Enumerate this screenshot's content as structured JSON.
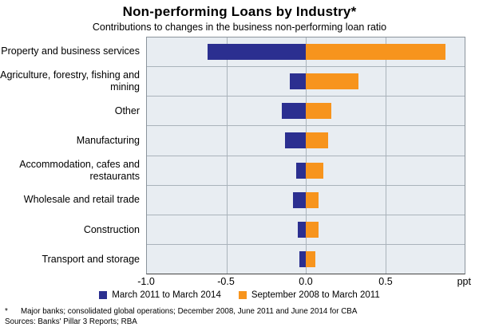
{
  "title": "Non-performing Loans by Industry*",
  "subtitle": "Contributions to changes in the business non-performing loan ratio",
  "chart_data": {
    "type": "bar",
    "orientation": "horizontal",
    "title": "Non-performing Loans by Industry*",
    "subtitle": "Contributions to changes in the business non-performing loan ratio",
    "categories": [
      "Property and business services",
      "Agriculture, forestry, fishing and mining",
      "Other",
      "Manufacturing",
      "Accommodation, cafes and restaurants",
      "Wholesale and retail trade",
      "Construction",
      "Transport and storage"
    ],
    "series": [
      {
        "name": "March 2011 to March 2014",
        "color": "#2b2f90",
        "values": [
          -0.62,
          -0.1,
          -0.15,
          -0.13,
          -0.06,
          -0.08,
          -0.05,
          -0.04
        ]
      },
      {
        "name": "September 2008 to March 2011",
        "color": "#f7941d",
        "values": [
          0.88,
          0.33,
          0.16,
          0.14,
          0.11,
          0.08,
          0.08,
          0.06
        ]
      }
    ],
    "xlim": [
      -1.0,
      1.0
    ],
    "xticks": [
      -1.0,
      -0.5,
      0.0,
      0.5
    ],
    "xtick_labels": [
      "-1.0",
      "-0.5",
      "0.0",
      "0.5"
    ],
    "unit_label": "ppt",
    "grid": true,
    "legend_position": "bottom",
    "plot_background": "#e8edf2",
    "gridline_color": "#aab3bb"
  },
  "footnotes": {
    "asterisk": "*",
    "note": "Major banks; consolidated global operations; December 2008, June 2011 and June 2014 for CBA",
    "sources": "Sources: Banks' Pillar 3 Reports; RBA"
  }
}
